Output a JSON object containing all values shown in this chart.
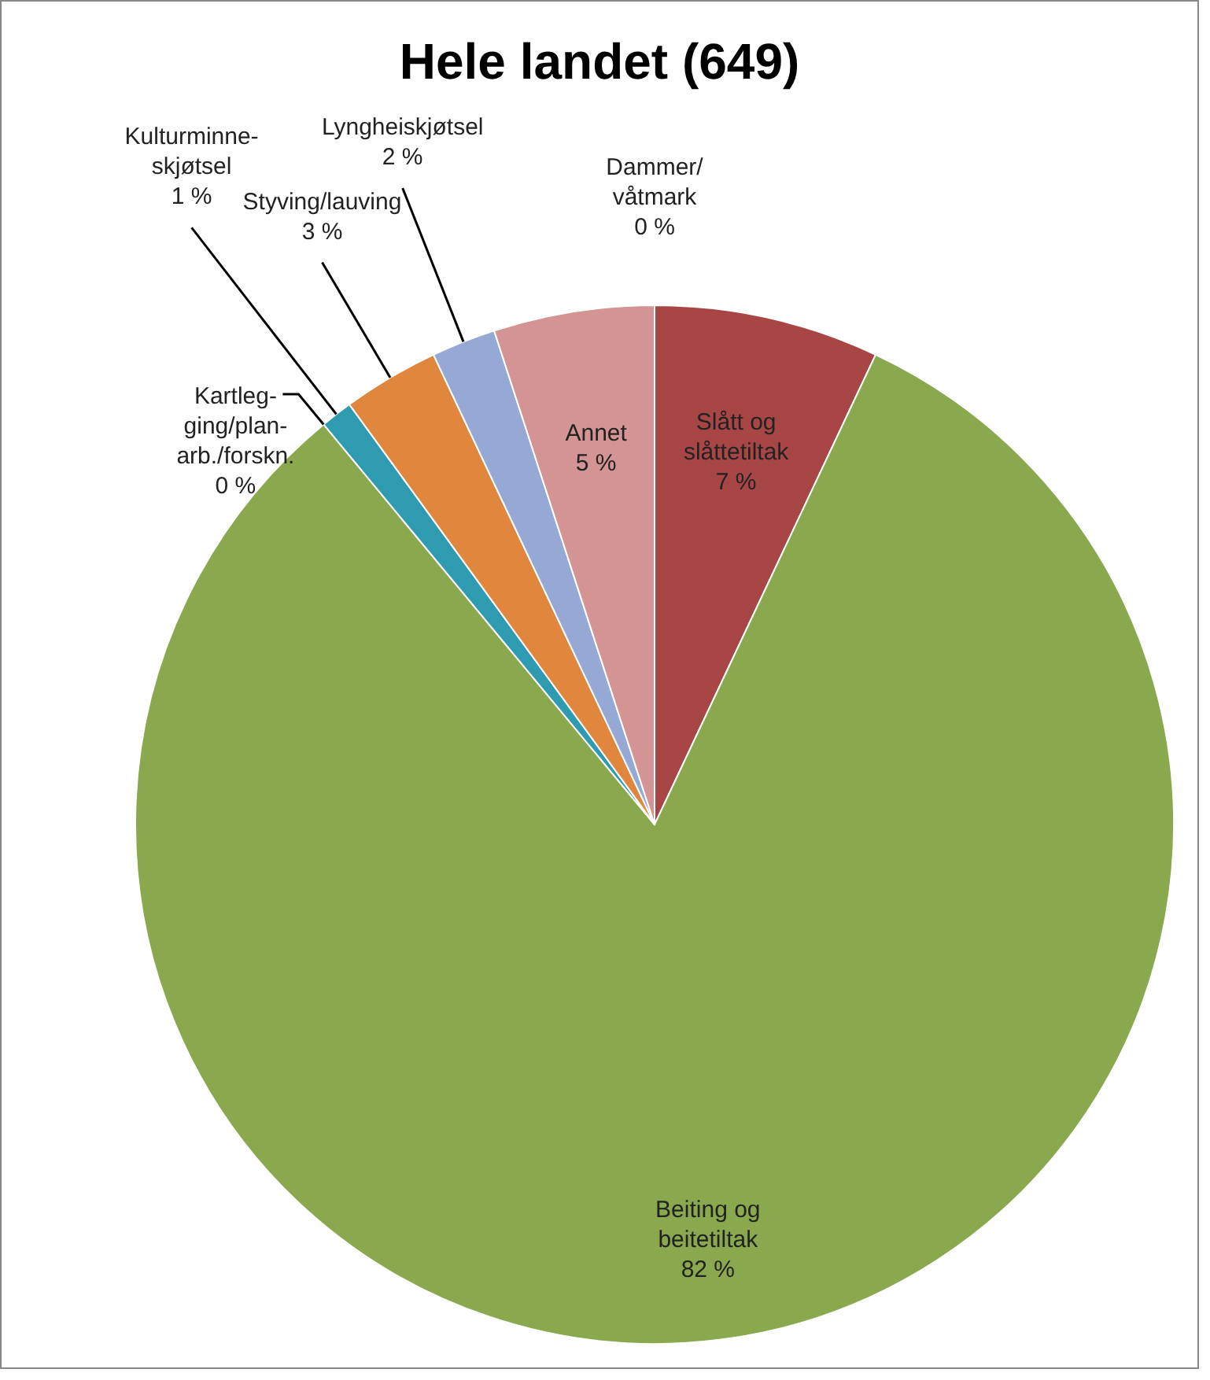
{
  "chart_data": {
    "type": "pie",
    "title": "Hele landet (649)",
    "categories": [
      "Slått og\nslåttetiltak",
      "Beiting og\nbeitetiltak",
      "Kartleg-\nging/plan-\narb./forskn.",
      "Kulturminne-\nskjøtsel",
      "Styving/lauving",
      "Lyngheiskjøtsel",
      "Annet",
      "Dammer/\nvåtmark"
    ],
    "values": [
      7,
      82,
      0,
      1,
      3,
      2,
      5,
      0
    ],
    "value_labels": [
      "7 %",
      "82 %",
      "0 %",
      "1 %",
      "3 %",
      "2 %",
      "5 %",
      "0 %"
    ],
    "colors": [
      "#a84646",
      "#8aa84e",
      "#4bacc6",
      "#2e9bb0",
      "#e0873d",
      "#95a9d4",
      "#d49494",
      "#7f7f7f"
    ],
    "legend": false
  }
}
